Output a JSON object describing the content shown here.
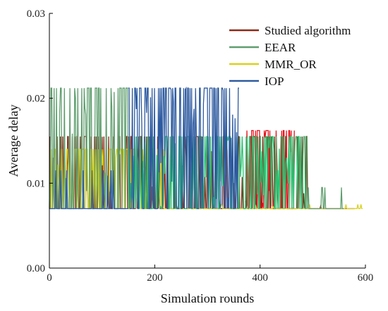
{
  "chart_data": {
    "type": "line",
    "xlabel": "Simulation rounds",
    "ylabel": "Average delay",
    "xlim": [
      0,
      600
    ],
    "ylim": [
      0,
      0.03
    ],
    "x_ticks": [
      0,
      200,
      400,
      600
    ],
    "y_ticks": [
      0.0,
      0.01,
      0.02,
      0.03
    ],
    "x_tick_labels": [
      "0",
      "200",
      "400",
      "600"
    ],
    "y_tick_labels": [
      "0.00",
      "0.01",
      "0.02",
      "0.03"
    ],
    "grid": false,
    "legend_position": "top-right",
    "series": [
      {
        "name": "Studied algorithm",
        "color": "#8b2a1a",
        "segments": [
          {
            "x_start": 0,
            "x_end": 500,
            "low": 0.007,
            "high": 0.0155,
            "density": 0.35
          },
          {
            "x_start": 372,
            "x_end": 465,
            "low": 0.007,
            "high": 0.0162,
            "density": 0.55,
            "color": "#e8101a"
          },
          {
            "x_start": 500,
            "x_end": 580,
            "low": 0.007,
            "high": 0.0095,
            "density": 0.06
          }
        ]
      },
      {
        "name": "EEAR",
        "color": "#5f9e6e",
        "segments": [
          {
            "x_start": 0,
            "x_end": 150,
            "low": 0.007,
            "high": 0.0212,
            "density": 0.45
          },
          {
            "x_start": 150,
            "x_end": 490,
            "low": 0.007,
            "high": 0.0155,
            "density": 0.6,
            "color": "#2bbf6f"
          },
          {
            "x_start": 490,
            "x_end": 560,
            "low": 0.007,
            "high": 0.0095,
            "density": 0.08
          }
        ]
      },
      {
        "name": "MMR_OR",
        "color": "#d9d21a",
        "segments": [
          {
            "x_start": 0,
            "x_end": 230,
            "low": 0.007,
            "high": 0.014,
            "density": 0.55
          },
          {
            "x_start": 230,
            "x_end": 595,
            "low": 0.007,
            "high": 0.0075,
            "density": 0.05
          }
        ]
      },
      {
        "name": "IOP",
        "color": "#2d5aa0",
        "segments": [
          {
            "x_start": 150,
            "x_end": 360,
            "low": 0.007,
            "high": 0.0212,
            "density": 0.6
          },
          {
            "x_start": 0,
            "x_end": 150,
            "low": 0.007,
            "high": 0.0115,
            "density": 0.08
          }
        ]
      }
    ]
  }
}
